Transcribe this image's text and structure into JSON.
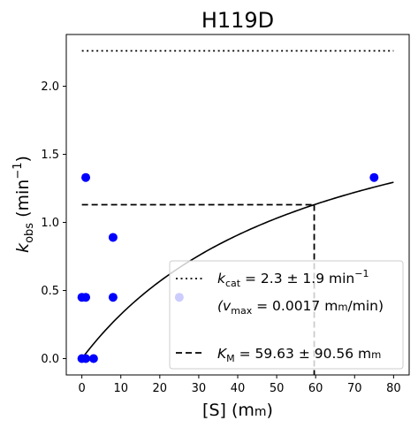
{
  "chart_data": {
    "type": "scatter",
    "title": "H119D",
    "xlabel": {
      "main": "[S] (m",
      "smallcaps": "m",
      "close": ")"
    },
    "ylabel": {
      "k": "k",
      "sub": "obs",
      "rest": " (min",
      "sup": "−1",
      "close": ")"
    },
    "xlim": [
      -4,
      84
    ],
    "ylim": [
      -0.12,
      2.38
    ],
    "xticks": [
      0,
      10,
      20,
      30,
      40,
      50,
      60,
      70,
      80
    ],
    "yticks": [
      0.0,
      0.5,
      1.0,
      1.5,
      2.0
    ],
    "ytick_labels": [
      "0.0",
      "0.5",
      "1.0",
      "1.5",
      "2.0"
    ],
    "grid": false,
    "point_color": "#0000ff",
    "points": [
      {
        "x": 0,
        "y": 0.45
      },
      {
        "x": 0,
        "y": 0.0
      },
      {
        "x": 1,
        "y": 1.33
      },
      {
        "x": 1,
        "y": 0.45
      },
      {
        "x": 1,
        "y": 0.0
      },
      {
        "x": 3,
        "y": 0.0
      },
      {
        "x": 8,
        "y": 0.89
      },
      {
        "x": 8,
        "y": 0.45
      },
      {
        "x": 25,
        "y": 0.45
      },
      {
        "x": 75,
        "y": 1.33
      }
    ],
    "kcat": 2.26,
    "km": 59.63,
    "fit_x_range": [
      0,
      80
    ],
    "hline_kcat_x": [
      0,
      80
    ],
    "half_kcat_y": 1.13,
    "legend": {
      "position": "lower-right",
      "kcat": {
        "k": "k",
        "sub": "cat",
        "rest": " = 2.3 ± 1.9 min",
        "sup": "−1"
      },
      "vmax": {
        "open": "(v",
        "sub": "max",
        "mid": " = 0.0017 m",
        "smallcaps": "m",
        "end": "/min)"
      },
      "km": {
        "k": "K",
        "sub": "M",
        "rest": " = 59.63 ± 90.56 m",
        "smallcaps": "m"
      }
    }
  }
}
